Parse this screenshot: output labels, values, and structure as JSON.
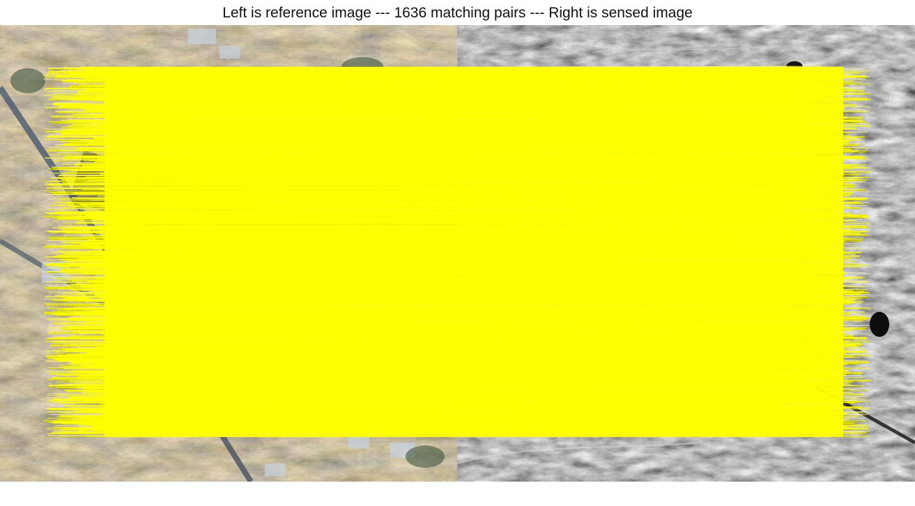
{
  "figure": {
    "title": "Left is reference image --- 1636 matching pairs --- Right is sensed image",
    "match_count": 1636,
    "line_color": "#ffff00",
    "left_image": {
      "kind": "optical-satellite",
      "palette": [
        "#6b5a43",
        "#a58d6c",
        "#d8cbb3",
        "#3a3a2e",
        "#7a6e5a",
        "#c9c0ad"
      ]
    },
    "right_image": {
      "kind": "sar-grayscale",
      "palette": [
        "#2a2a2a",
        "#5c5c5c",
        "#8a8a8a",
        "#b8b8b8",
        "#1a1a1a"
      ]
    }
  }
}
